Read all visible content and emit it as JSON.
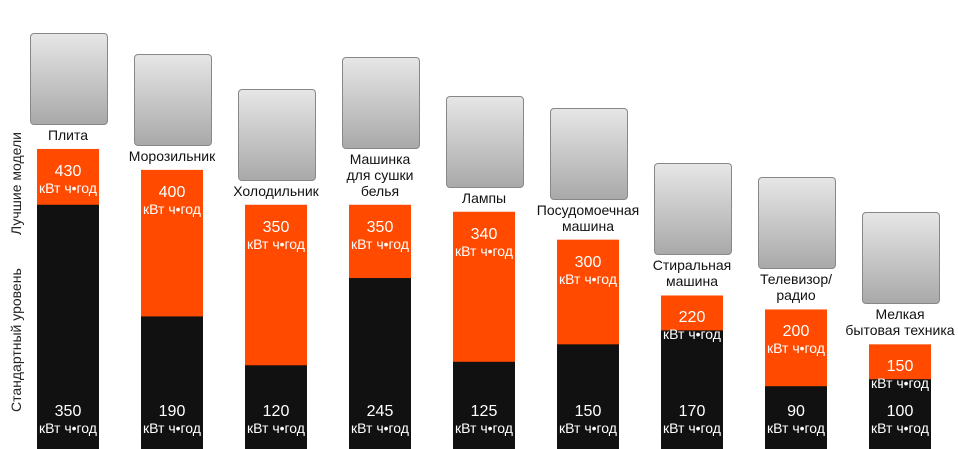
{
  "chart_data": {
    "type": "overlap-bar",
    "unit": "кВт ч•год",
    "categories": [
      "Плита",
      "Морозильник",
      "Холодильник",
      "Машинка\nдля сушки\nбелья",
      "Лампы",
      "Посудомоечная\nмашина",
      "Стиральная\nмашина",
      "Телевизор/\nрадио",
      "Мелкая\nбытовая техника"
    ],
    "series": [
      {
        "name": "Лучшие модели",
        "color": "#ff4a00",
        "values": [
          430,
          400,
          350,
          350,
          340,
          300,
          220,
          200,
          150
        ]
      },
      {
        "name": "Стандартный уровень",
        "color": "#111111",
        "values": [
          350,
          190,
          120,
          245,
          125,
          150,
          170,
          90,
          100
        ]
      }
    ],
    "ylim": [
      0,
      450
    ]
  }
}
